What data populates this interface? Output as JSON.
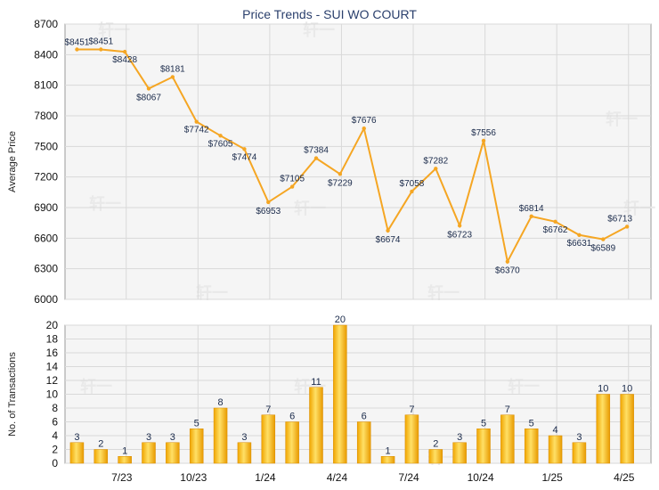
{
  "chart_data": [
    {
      "type": "line",
      "title": "Price Trends - SUI WO COURT",
      "ylabel": "Average Price",
      "ylim": [
        6000,
        8700
      ],
      "yticks": [
        6000,
        6300,
        6600,
        6900,
        7200,
        7500,
        7800,
        8100,
        8400,
        8700
      ],
      "grid": true,
      "series": [
        {
          "values": [
            8451,
            8451,
            8428,
            8067,
            8181,
            7742,
            7605,
            7474,
            6953,
            7105,
            7384,
            7229,
            7676,
            6674,
            7058,
            7282,
            6723,
            7556,
            6370,
            6814,
            6762,
            6631,
            6589,
            6713
          ],
          "labels": [
            "$8451",
            "$8451",
            "$8428",
            "$8067",
            "$8181",
            "$7742",
            "$7605",
            "$7474",
            "$6953",
            "$7105",
            "$7384",
            "$7229",
            "$7676",
            "$6674",
            "$7058",
            "$7282",
            "$6723",
            "$7556",
            "$6370",
            "$6814",
            "$6762",
            "$6631",
            "$6589",
            "$6713"
          ],
          "color": "#f5a623"
        }
      ],
      "xticks": [
        "7/23",
        "10/23",
        "1/24",
        "4/24",
        "7/24",
        "10/24",
        "1/25",
        "4/25"
      ]
    },
    {
      "type": "bar",
      "ylabel": "No. of Transactions",
      "ylim": [
        0,
        20
      ],
      "yticks": [
        0,
        2,
        4,
        6,
        8,
        10,
        12,
        14,
        16,
        18,
        20
      ],
      "grid": true,
      "values": [
        3,
        2,
        1,
        3,
        3,
        5,
        8,
        3,
        7,
        6,
        11,
        20,
        6,
        1,
        7,
        2,
        3,
        5,
        7,
        5,
        4,
        3,
        10,
        10
      ],
      "xticks": [
        "7/23",
        "10/23",
        "1/24",
        "4/24",
        "7/24",
        "10/24",
        "1/25",
        "4/25"
      ],
      "color": "#f5b700"
    }
  ],
  "watermark": "轩一"
}
